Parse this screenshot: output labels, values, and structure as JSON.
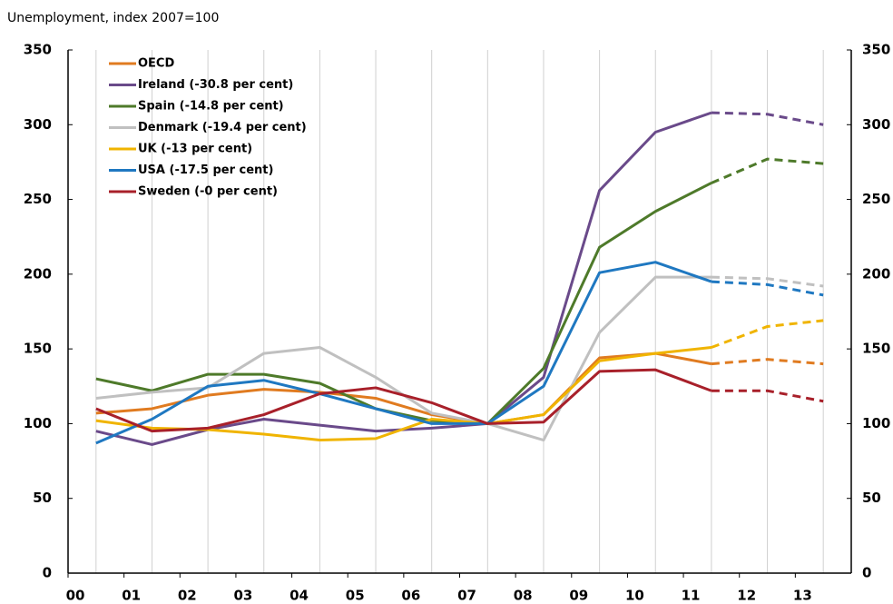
{
  "chart_data": {
    "type": "line",
    "y_label": "Unemployment, index 2007=100",
    "x": [
      0.5,
      1.5,
      2.5,
      3.5,
      4.5,
      5.5,
      6.5,
      7.5,
      8.5,
      9.5,
      10.5,
      11.5,
      12.5,
      13.5
    ],
    "xlim": [
      0,
      14
    ],
    "xticks": [
      {
        "value": 0,
        "label": "00"
      },
      {
        "value": 1,
        "label": "01"
      },
      {
        "value": 2,
        "label": "02"
      },
      {
        "value": 3,
        "label": "03"
      },
      {
        "value": 4,
        "label": "04"
      },
      {
        "value": 5,
        "label": "05"
      },
      {
        "value": 6,
        "label": "06"
      },
      {
        "value": 7,
        "label": "07"
      },
      {
        "value": 8,
        "label": "08"
      },
      {
        "value": 9,
        "label": "09"
      },
      {
        "value": 10,
        "label": "10"
      },
      {
        "value": 11,
        "label": "11"
      },
      {
        "value": 12,
        "label": "12"
      },
      {
        "value": 13,
        "label": "13"
      }
    ],
    "ylim": [
      0,
      350
    ],
    "yticks": [
      0,
      50,
      100,
      150,
      200,
      250,
      300,
      350
    ],
    "y2lim": [
      0,
      350
    ],
    "y2ticks": [
      0,
      50,
      100,
      150,
      200,
      250,
      300,
      350
    ],
    "dashed_from_x": 11.5,
    "grid": true,
    "legend": "upper left",
    "series": [
      {
        "name": "OECD",
        "color": "#e07b20",
        "values": [
          107,
          110,
          119,
          123,
          121,
          117,
          106,
          100,
          106,
          144,
          147,
          140,
          143,
          140
        ]
      },
      {
        "name": "Ireland (-30.8 per cent)",
        "color": "#6a4a8a",
        "values": [
          95,
          86,
          96,
          103,
          99,
          95,
          97,
          100,
          131,
          256,
          295,
          308,
          307,
          300
        ]
      },
      {
        "name": "Spain (-14.8 per cent)",
        "color": "#4e7a2a",
        "values": [
          130,
          122,
          133,
          133,
          127,
          110,
          102,
          100,
          137,
          218,
          242,
          261,
          277,
          274
        ]
      },
      {
        "name": "Denmark (-19.4 per cent)",
        "color": "#c0c0c0",
        "values": [
          117,
          121,
          124,
          147,
          151,
          131,
          107,
          100,
          89,
          161,
          198,
          198,
          197,
          192
        ]
      },
      {
        "name": "UK (-13 per cent)",
        "color": "#f0b400",
        "values": [
          102,
          97,
          96,
          93,
          89,
          90,
          103,
          100,
          106,
          142,
          147,
          151,
          165,
          169
        ]
      },
      {
        "name": "USA (-17.5 per cent)",
        "color": "#1f78c1",
        "values": [
          87,
          103,
          125,
          129,
          120,
          110,
          100,
          100,
          125,
          201,
          208,
          195,
          193,
          186
        ]
      },
      {
        "name": "Sweden (-0 per cent)",
        "color": "#a8202a",
        "values": [
          110,
          95,
          97,
          106,
          120,
          124,
          114,
          100,
          101,
          135,
          136,
          122,
          122,
          115
        ]
      }
    ]
  }
}
